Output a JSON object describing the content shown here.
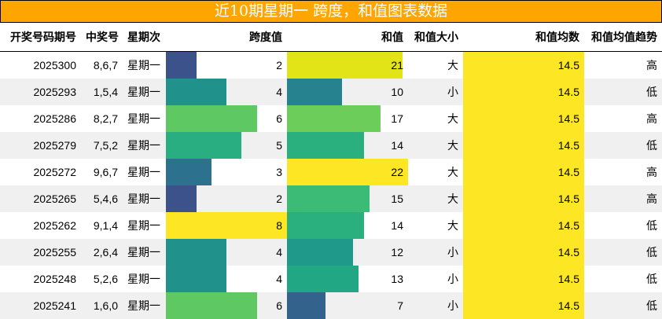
{
  "title": "近10期星期一 跨度，和值图表数据",
  "headers": [
    "开奖号码期号",
    "中奖号",
    "星期次",
    "跨度值",
    "和值",
    "和值大小",
    "和值均数",
    "和值均值趋势"
  ],
  "colors": {
    "title_bg": "#ffa500",
    "row_alt": "#f0f0f0",
    "avg_bar": "#fde725"
  },
  "scales": {
    "span_max": 8,
    "sum_max": 22,
    "span_col_width": 154,
    "sum_col_width": 154
  },
  "rows": [
    {
      "issue": "2025300",
      "numbers": "8,6,7",
      "weekday": "星期一",
      "span": 2,
      "span_color": "#3b528b",
      "sum": 21,
      "sum_color": "#e2e418",
      "size": "大",
      "avg": "14.5",
      "trend": "高"
    },
    {
      "issue": "2025293",
      "numbers": "1,5,4",
      "weekday": "星期一",
      "span": 4,
      "span_color": "#21918c",
      "sum": 10,
      "sum_color": "#26828e",
      "size": "小",
      "avg": "14.5",
      "trend": "低"
    },
    {
      "issue": "2025286",
      "numbers": "8,2,7",
      "weekday": "星期一",
      "span": 6,
      "span_color": "#5ec962",
      "sum": 17,
      "sum_color": "#6ccd5a",
      "size": "大",
      "avg": "14.5",
      "trend": "高"
    },
    {
      "issue": "2025279",
      "numbers": "7,5,2",
      "weekday": "星期一",
      "span": 5,
      "span_color": "#28ae80",
      "sum": 14,
      "sum_color": "#2ab07f",
      "size": "大",
      "avg": "14.5",
      "trend": "低"
    },
    {
      "issue": "2025272",
      "numbers": "9,6,7",
      "weekday": "星期一",
      "span": 3,
      "span_color": "#2c728e",
      "sum": 22,
      "sum_color": "#fde725",
      "size": "大",
      "avg": "14.5",
      "trend": "高"
    },
    {
      "issue": "2025265",
      "numbers": "5,4,6",
      "weekday": "星期一",
      "span": 2,
      "span_color": "#3b528b",
      "sum": 15,
      "sum_color": "#3bbb75",
      "size": "大",
      "avg": "14.5",
      "trend": "高"
    },
    {
      "issue": "2025262",
      "numbers": "9,1,4",
      "weekday": "星期一",
      "span": 8,
      "span_color": "#fde725",
      "sum": 14,
      "sum_color": "#2ab07f",
      "size": "大",
      "avg": "14.5",
      "trend": "低"
    },
    {
      "issue": "2025255",
      "numbers": "2,6,4",
      "weekday": "星期一",
      "span": 4,
      "span_color": "#21918c",
      "sum": 12,
      "sum_color": "#1f9a8a",
      "size": "小",
      "avg": "14.5",
      "trend": "低"
    },
    {
      "issue": "2025248",
      "numbers": "5,2,6",
      "weekday": "星期一",
      "span": 4,
      "span_color": "#21918c",
      "sum": 13,
      "sum_color": "#22a785",
      "size": "小",
      "avg": "14.5",
      "trend": "低"
    },
    {
      "issue": "2025241",
      "numbers": "1,6,0",
      "weekday": "星期一",
      "span": 6,
      "span_color": "#5ec962",
      "sum": 7,
      "sum_color": "#33638d",
      "size": "小",
      "avg": "14.5",
      "trend": "低"
    }
  ]
}
